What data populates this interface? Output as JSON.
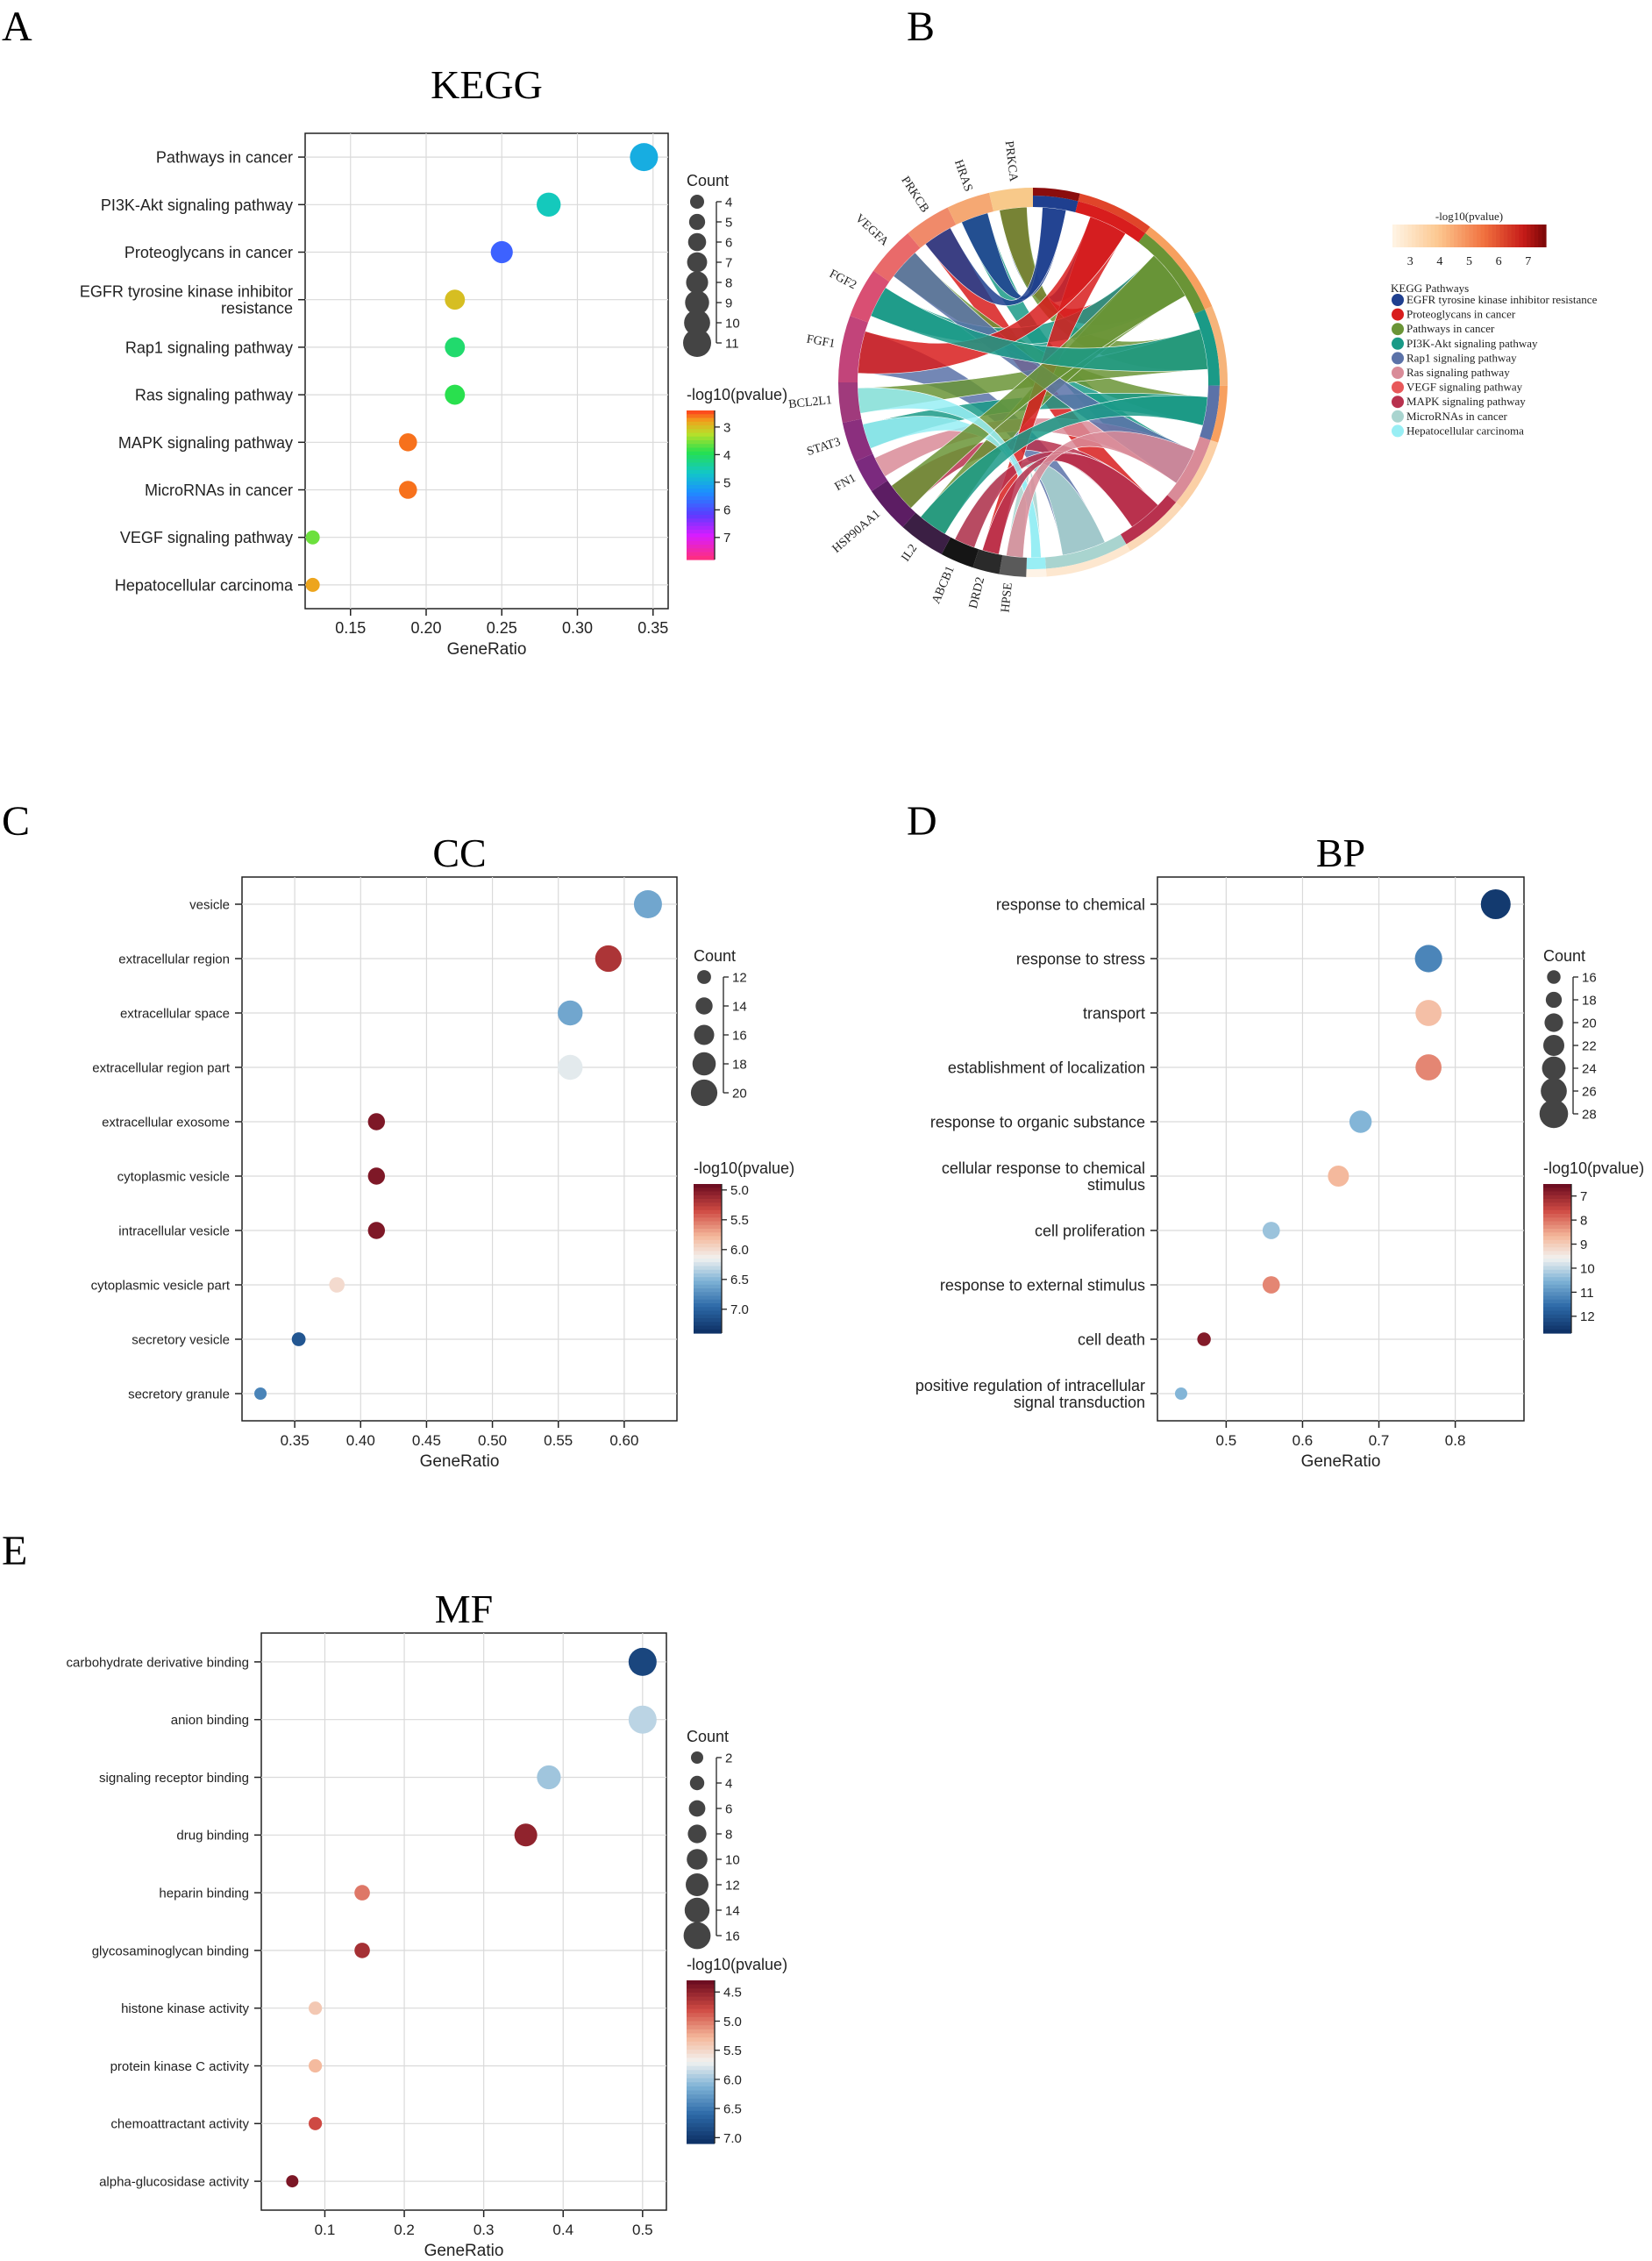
{
  "panel_letters": [
    "A",
    "B",
    "C",
    "D",
    "E"
  ],
  "chart_data": [
    {
      "id": "kegg",
      "type": "scatter",
      "title": "KEGG",
      "xlabel": "GeneRatio",
      "xlim": [
        0.12,
        0.36
      ],
      "xticks": [
        0.15,
        0.2,
        0.25,
        0.3,
        0.35
      ],
      "xtick_labels": [
        "0.15",
        "0.20",
        "0.25",
        "0.30",
        "0.35"
      ],
      "categories": [
        "Pathways in cancer",
        "PI3K-Akt signaling pathway",
        "Proteoglycans in cancer",
        "EGFR tyrosine kinase inhibitor resistance",
        "Rap1 signaling pathway",
        "Ras signaling pathway",
        "MAPK signaling pathway",
        "MicroRNAs in cancer",
        "VEGF signaling pathway",
        "Hepatocellular carcinoma"
      ],
      "category_labels": [
        [
          "Pathways in cancer"
        ],
        [
          "PI3K-Akt signaling pathway"
        ],
        [
          "Proteoglycans in cancer"
        ],
        [
          "EGFR tyrosine kinase inhibitor",
          "resistance"
        ],
        [
          "Rap1 signaling pathway"
        ],
        [
          "Ras signaling pathway"
        ],
        [
          "MAPK signaling pathway"
        ],
        [
          "MicroRNAs in cancer"
        ],
        [
          "VEGF signaling pathway"
        ],
        [
          "Hepatocellular carcinoma"
        ]
      ],
      "x": [
        0.344,
        0.281,
        0.25,
        0.219,
        0.219,
        0.219,
        0.188,
        0.188,
        0.125,
        0.125
      ],
      "count": [
        11,
        9,
        8,
        7,
        7,
        7,
        6,
        6,
        4,
        4
      ],
      "neglog10p": [
        5.0,
        4.6,
        5.8,
        3.0,
        4.1,
        3.9,
        2.6,
        2.6,
        3.6,
        2.8
      ],
      "size_legend": {
        "title": "Count",
        "values": [
          4,
          5,
          6,
          7,
          8,
          9,
          10,
          11
        ],
        "min": 4,
        "max": 11
      },
      "color_legend": {
        "title": "-log10(pvalue)",
        "ticks": [
          3,
          4,
          5,
          6,
          7
        ],
        "min": 2.4,
        "max": 7.8,
        "colormap": "rainbow"
      }
    },
    {
      "id": "cc",
      "type": "scatter",
      "title": "CC",
      "xlabel": "GeneRatio",
      "xlim": [
        0.31,
        0.64
      ],
      "xticks": [
        0.35,
        0.4,
        0.45,
        0.5,
        0.55,
        0.6
      ],
      "xtick_labels": [
        "0.35",
        "0.40",
        "0.45",
        "0.50",
        "0.55",
        "0.60"
      ],
      "categories": [
        "vesicle",
        "extracellular region",
        "extracellular space",
        "extracellular region part",
        "extracellular exosome",
        "cytoplasmic vesicle",
        "intracellular vesicle",
        "cytoplasmic vesicle part",
        "secretory vesicle",
        "secretory granule"
      ],
      "category_labels": [
        [
          "vesicle"
        ],
        [
          "extracellular region"
        ],
        [
          "extracellular space"
        ],
        [
          "extracellular region part"
        ],
        [
          "extracellular exosome"
        ],
        [
          "cytoplasmic vesicle"
        ],
        [
          "intracellular vesicle"
        ],
        [
          "cytoplasmic vesicle part"
        ],
        [
          "secretory vesicle"
        ],
        [
          "secretory granule"
        ]
      ],
      "x": [
        0.618,
        0.588,
        0.559,
        0.559,
        0.412,
        0.412,
        0.412,
        0.382,
        0.353,
        0.324
      ],
      "count": [
        21,
        20,
        19,
        19,
        14,
        14,
        14,
        13,
        12,
        11
      ],
      "neglog10p": [
        6.6,
        5.2,
        6.6,
        6.2,
        5.0,
        5.0,
        5.0,
        6.0,
        7.1,
        6.8
      ],
      "size_legend": {
        "title": "Count",
        "values": [
          12,
          14,
          16,
          18,
          20
        ],
        "min": 11,
        "max": 21
      },
      "color_legend": {
        "title": "-log10(pvalue)",
        "ticks": [
          5.0,
          5.5,
          6.0,
          6.5,
          7.0
        ],
        "tick_labels": [
          "5.0",
          "5.5",
          "6.0",
          "6.5",
          "7.0"
        ],
        "min": 4.9,
        "max": 7.4,
        "colormap": "rdbu"
      }
    },
    {
      "id": "bp",
      "type": "scatter",
      "title": "BP",
      "xlabel": "GeneRatio",
      "xlim": [
        0.41,
        0.89
      ],
      "xticks": [
        0.5,
        0.6,
        0.7,
        0.8
      ],
      "xtick_labels": [
        "0.5",
        "0.6",
        "0.7",
        "0.8"
      ],
      "categories": [
        "response to chemical",
        "response to stress",
        "transport",
        "establishment of localization",
        "response to organic substance",
        "cellular response to chemical stimulus",
        "cell proliferation",
        "response to external stimulus",
        "cell death",
        "positive regulation of intracellular signal transduction"
      ],
      "category_labels": [
        [
          "response to chemical"
        ],
        [
          "response to stress"
        ],
        [
          "transport"
        ],
        [
          "establishment of localization"
        ],
        [
          "response to organic substance"
        ],
        [
          "cellular response to chemical",
          "stimulus"
        ],
        [
          "cell proliferation"
        ],
        [
          "response to external stimulus"
        ],
        [
          "cell death"
        ],
        [
          "positive regulation of intracellular",
          "signal transduction"
        ]
      ],
      "x": [
        0.853,
        0.765,
        0.765,
        0.765,
        0.676,
        0.647,
        0.559,
        0.559,
        0.471,
        0.441
      ],
      "count": [
        29,
        27,
        26,
        26,
        23,
        22,
        19,
        19,
        16,
        15
      ],
      "neglog10p": [
        12.5,
        11.2,
        8.8,
        8.2,
        10.5,
        8.7,
        10.3,
        8.2,
        6.8,
        10.5
      ],
      "size_legend": {
        "title": "Count",
        "values": [
          16,
          18,
          20,
          22,
          24,
          26,
          28
        ],
        "min": 15,
        "max": 29
      },
      "color_legend": {
        "title": "-log10(pvalue)",
        "ticks": [
          7,
          8,
          9,
          10,
          11,
          12
        ],
        "min": 6.5,
        "max": 12.7,
        "colormap": "rdbu"
      }
    },
    {
      "id": "mf",
      "type": "scatter",
      "title": "MF",
      "xlabel": "GeneRatio",
      "xlim": [
        0.02,
        0.53
      ],
      "xticks": [
        0.1,
        0.2,
        0.3,
        0.4,
        0.5
      ],
      "xtick_labels": [
        "0.1",
        "0.2",
        "0.3",
        "0.4",
        "0.5"
      ],
      "categories": [
        "carbohydrate derivative binding",
        "anion binding",
        "signaling receptor binding",
        "drug binding",
        "heparin binding",
        "glycosaminoglycan binding",
        "histone kinase activity",
        "protein kinase C activity",
        "chemoattractant activity",
        "alpha-glucosidase activity"
      ],
      "category_labels": [
        [
          "carbohydrate derivative binding"
        ],
        [
          "anion binding"
        ],
        [
          "signaling receptor binding"
        ],
        [
          "drug binding"
        ],
        [
          "heparin binding"
        ],
        [
          "glycosaminoglycan binding"
        ],
        [
          "histone kinase activity"
        ],
        [
          "protein kinase C activity"
        ],
        [
          "chemoattractant activity"
        ],
        [
          "alpha-glucosidase activity"
        ]
      ],
      "x": [
        0.5,
        0.5,
        0.382,
        0.353,
        0.147,
        0.147,
        0.088,
        0.088,
        0.088,
        0.059
      ],
      "count": [
        17,
        17,
        13,
        12,
        5,
        5,
        3,
        3,
        3,
        2
      ],
      "neglog10p": [
        6.9,
        5.9,
        6.0,
        4.5,
        5.0,
        4.6,
        5.4,
        5.3,
        4.8,
        4.4
      ],
      "size_legend": {
        "title": "Count",
        "values": [
          2,
          4,
          6,
          8,
          10,
          12,
          14,
          16
        ],
        "min": 2,
        "max": 17
      },
      "color_legend": {
        "title": "-log10(pvalue)",
        "ticks": [
          4.5,
          5.0,
          5.5,
          6.0,
          6.5,
          7.0
        ],
        "tick_labels": [
          "4.5",
          "5.0",
          "5.5",
          "6.0",
          "6.5",
          "7.0"
        ],
        "min": 4.3,
        "max": 7.1,
        "colormap": "rdbu"
      }
    },
    {
      "id": "chord",
      "type": "chord",
      "genes": [
        "PRKCA",
        "HRAS",
        "PRKCB",
        "VEGFA",
        "FGF2",
        "FGF1",
        "BCL2L1",
        "STAT3",
        "FN1",
        "HSP90AA1",
        "IL2",
        "ABCB1",
        "DRD2",
        "HPSE"
      ],
      "color_legend": {
        "title": "-log10(pvalue)",
        "ticks": [
          3,
          4,
          5,
          6,
          7
        ],
        "min": 2.4,
        "max": 7.6
      },
      "pathway_legend_title": "KEGG Pathways",
      "pathways": [
        {
          "name": "EGFR tyrosine kinase inhibitor resistance",
          "color": "#1f3f8f"
        },
        {
          "name": "Proteoglycans in cancer",
          "color": "#d81d1d"
        },
        {
          "name": "Pathways in cancer",
          "color": "#6a9436"
        },
        {
          "name": "PI3K-Akt signaling pathway",
          "color": "#1a9a87"
        },
        {
          "name": "Rap1 signaling pathway",
          "color": "#5b72a8"
        },
        {
          "name": "Ras signaling pathway",
          "color": "#d98b98"
        },
        {
          "name": "VEGF signaling pathway",
          "color": "#e8585a"
        },
        {
          "name": "MAPK signaling pathway",
          "color": "#b8314e"
        },
        {
          "name": "MicroRNAs in cancer",
          "color": "#a9d4cf"
        },
        {
          "name": "Hepatocellular carcinoma",
          "color": "#98eef4"
        }
      ]
    }
  ]
}
